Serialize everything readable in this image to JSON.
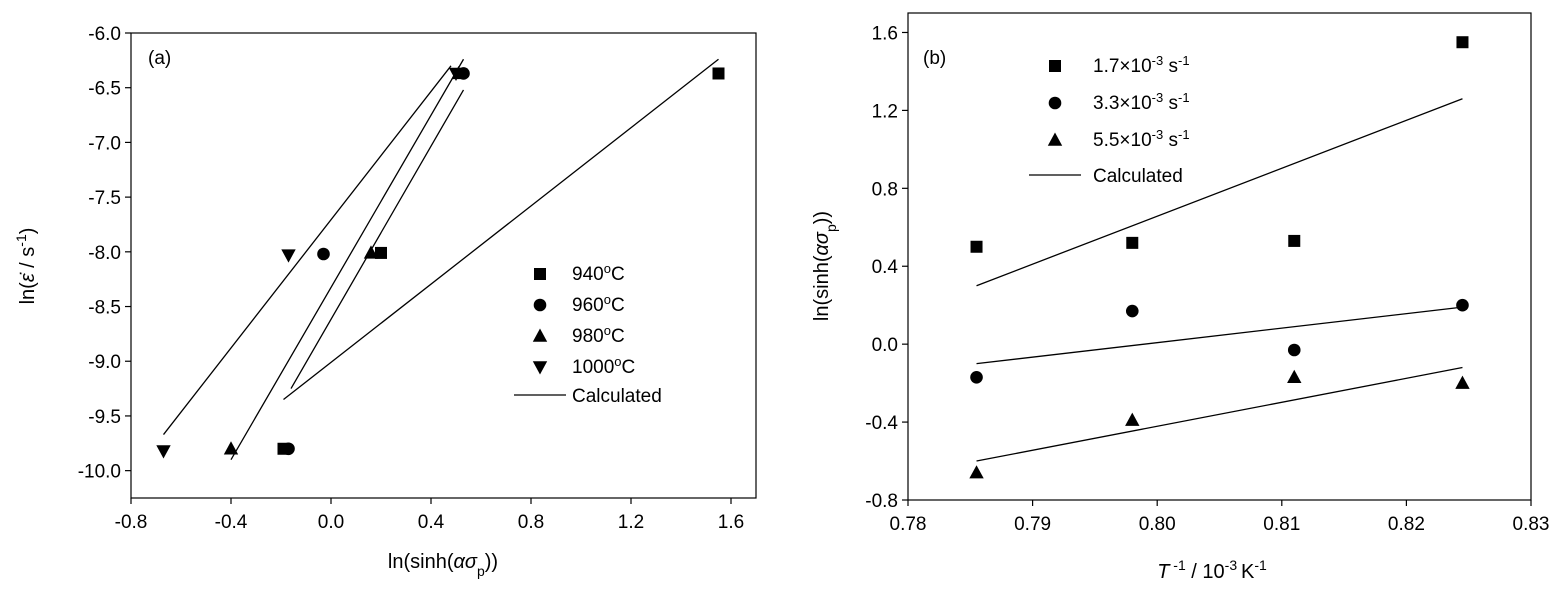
{
  "chart_data": [
    {
      "type": "scatter",
      "panel_label": "(a)",
      "xlabel": "ln(sinh(ασp))",
      "ylabel": "ln(ε̇ / s⁻¹)",
      "xlim": [
        -0.8,
        1.7
      ],
      "ylim": [
        -10.25,
        -6.0
      ],
      "xticks": [
        "-0.8",
        "-0.4",
        "0.0",
        "0.4",
        "0.8",
        "1.2",
        "1.6"
      ],
      "xtick_values": [
        -0.8,
        -0.4,
        0.0,
        0.4,
        0.8,
        1.2,
        1.6
      ],
      "yticks": [
        "-6.0",
        "-6.5",
        "-7.0",
        "-7.5",
        "-8.0",
        "-8.5",
        "-9.0",
        "-9.5",
        "-10.0"
      ],
      "ytick_values": [
        -6.0,
        -6.5,
        -7.0,
        -7.5,
        -8.0,
        -8.5,
        -9.0,
        -9.5,
        -10.0
      ],
      "legend_position": "right",
      "series": [
        {
          "name": "940 °C",
          "legend_base": "940",
          "legend_sup": "o",
          "legend_tail": "C",
          "marker": "square",
          "x": [
            -0.19,
            0.2,
            1.55
          ],
          "y": [
            -9.8,
            -8.01,
            -6.37
          ],
          "fit": {
            "x": [
              -0.19,
              1.55
            ],
            "y": [
              -9.35,
              -6.24
            ]
          }
        },
        {
          "name": "960 °C",
          "legend_base": "960",
          "legend_sup": "o",
          "legend_tail": "C",
          "marker": "circle",
          "x": [
            -0.17,
            -0.03,
            0.53
          ],
          "y": [
            -9.8,
            -8.02,
            -6.37
          ],
          "fit": {
            "x": [
              -0.16,
              0.53
            ],
            "y": [
              -9.25,
              -6.52
            ]
          }
        },
        {
          "name": "980 °C",
          "legend_base": "980",
          "legend_sup": "o",
          "legend_tail": "C",
          "marker": "triangle-up",
          "x": [
            -0.4,
            0.16,
            0.51
          ],
          "y": [
            -9.8,
            -8.01,
            -6.37
          ],
          "fit": {
            "x": [
              -0.4,
              0.53
            ],
            "y": [
              -9.9,
              -6.24
            ]
          }
        },
        {
          "name": "1000 °C",
          "legend_base": "1000",
          "legend_sup": "o",
          "legend_tail": "C",
          "marker": "triangle-down",
          "x": [
            -0.67,
            -0.17,
            0.5
          ],
          "y": [
            -9.82,
            -8.03,
            -6.37
          ],
          "fit": {
            "x": [
              -0.67,
              0.48
            ],
            "y": [
              -9.67,
              -6.3
            ]
          }
        }
      ],
      "fit_legend": "Calculated"
    },
    {
      "type": "scatter",
      "panel_label": "(b)",
      "xlabel": "T⁻¹ / 10⁻³ K⁻¹",
      "ylabel": "ln(sinh(ασp))",
      "xlim": [
        0.78,
        0.83
      ],
      "ylim": [
        -0.8,
        1.7
      ],
      "xticks": [
        "0.78",
        "0.79",
        "0.80",
        "0.81",
        "0.82",
        "0.83"
      ],
      "xtick_values": [
        0.78,
        0.79,
        0.8,
        0.81,
        0.82,
        0.83
      ],
      "yticks": [
        "-0.8",
        "-0.4",
        "0.0",
        "0.4",
        "0.8",
        "1.2",
        "1.6"
      ],
      "ytick_values": [
        -0.8,
        -0.4,
        0.0,
        0.4,
        0.8,
        1.2,
        1.6
      ],
      "legend_position": "top-left",
      "series": [
        {
          "name": "1.7×10⁻³ s⁻¹",
          "legend_base": "1.7×10",
          "legend_sup": "-3",
          "legend_tail": " s",
          "legend_sup2": "-1",
          "marker": "square",
          "x": [
            0.7855,
            0.798,
            0.811,
            0.8245
          ],
          "y": [
            0.5,
            0.52,
            0.53,
            1.55
          ],
          "fit": {
            "x": [
              0.7855,
              0.8245
            ],
            "y": [
              0.3,
              1.26
            ]
          }
        },
        {
          "name": "3.3×10⁻³ s⁻¹",
          "legend_base": "3.3×10",
          "legend_sup": "-3",
          "legend_tail": " s",
          "legend_sup2": "-1",
          "marker": "circle",
          "x": [
            0.7855,
            0.798,
            0.811,
            0.8245
          ],
          "y": [
            -0.17,
            0.17,
            -0.03,
            0.2
          ],
          "fit": {
            "x": [
              0.7855,
              0.8245
            ],
            "y": [
              -0.1,
              0.19
            ]
          }
        },
        {
          "name": "5.5×10⁻³ s⁻¹",
          "legend_base": "5.5×10",
          "legend_sup": "-3",
          "legend_tail": " s",
          "legend_sup2": "-1",
          "marker": "triangle-up",
          "x": [
            0.7855,
            0.798,
            0.811,
            0.8245
          ],
          "y": [
            -0.66,
            -0.39,
            -0.17,
            -0.2
          ],
          "fit": {
            "x": [
              0.7855,
              0.8245
            ],
            "y": [
              -0.6,
              -0.12
            ]
          }
        }
      ],
      "fit_legend": "Calculated"
    }
  ]
}
